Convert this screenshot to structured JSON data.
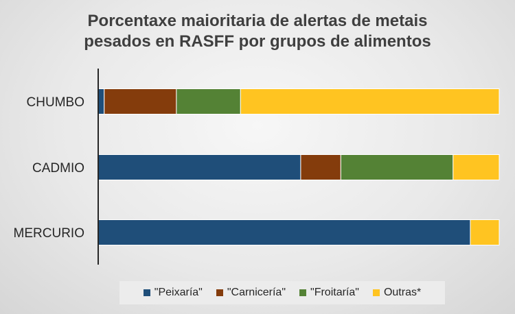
{
  "chart_data": {
    "type": "bar",
    "orientation": "horizontal",
    "stacked": true,
    "percent_stacked": true,
    "title_lines": [
      "Porcentaxe maioritaria de alertas de metais",
      "pesados en RASFF por grupos de alimentos"
    ],
    "categories": [
      "CHUMBO",
      "CADMIO",
      "MERCURIO"
    ],
    "series": [
      {
        "name": "\"Peixaría\"",
        "color": "#1F4E79",
        "values": [
          1.5,
          50.5,
          92.8
        ]
      },
      {
        "name": "\"Carnicería\"",
        "color": "#843C0C",
        "values": [
          18.0,
          10.0,
          0
        ]
      },
      {
        "name": "\"Froitaría\"",
        "color": "#548235",
        "values": [
          16.0,
          28.0,
          0
        ]
      },
      {
        "name": "Outras*",
        "color": "#FFC421",
        "values": [
          64.5,
          11.5,
          7.2
        ]
      }
    ],
    "xlim": [
      0,
      100
    ],
    "grid": false,
    "legend_position": "bottom"
  }
}
